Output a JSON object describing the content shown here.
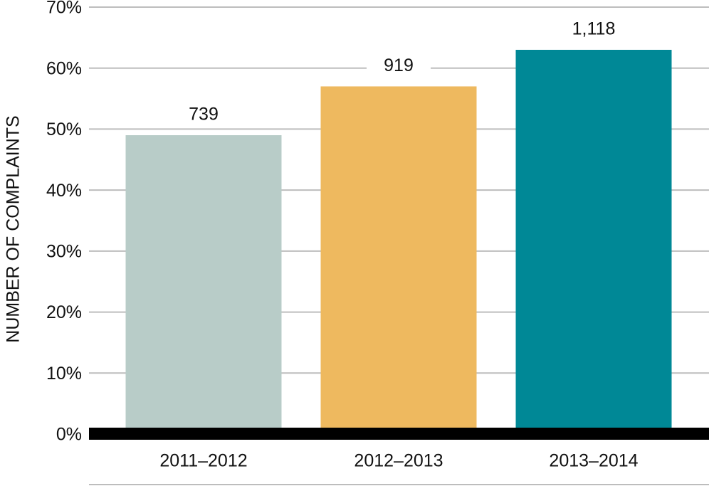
{
  "chart_data": {
    "type": "bar",
    "y_axis_label": "NUMBER OF COMPLAINTS",
    "categories": [
      "2011–2012",
      "2012–2013",
      "2013–2014"
    ],
    "values": [
      49,
      57,
      63
    ],
    "bar_labels": [
      "739",
      "919",
      "1,118"
    ],
    "colors": [
      "#b8ccc8",
      "#eeb95f",
      "#008896"
    ],
    "ylim": [
      0,
      70
    ],
    "yticks": [
      {
        "value": 0,
        "label": "0%"
      },
      {
        "value": 10,
        "label": "10%"
      },
      {
        "value": 20,
        "label": "20%"
      },
      {
        "value": 30,
        "label": "30%"
      },
      {
        "value": 40,
        "label": "40%"
      },
      {
        "value": 50,
        "label": "50%"
      },
      {
        "value": 60,
        "label": "60%"
      },
      {
        "value": 70,
        "label": "70%"
      }
    ],
    "grid": true
  }
}
